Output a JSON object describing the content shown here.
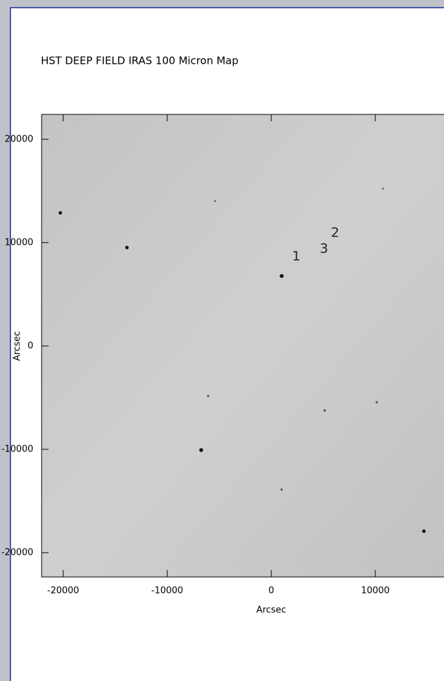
{
  "chart_data": {
    "type": "image",
    "title": "HST DEEP FIELD   IRAS 100 Micron Map",
    "x_label": "Arcsec",
    "y_label": "Arcsec",
    "xlim": [
      -22070,
      16600
    ],
    "ylim": [
      -22350,
      22400
    ],
    "xticks": [
      -20000,
      -10000,
      0,
      10000
    ],
    "yticks": [
      20000,
      10000,
      0,
      -10000,
      -20000
    ],
    "annotations": [
      "1",
      "2",
      "3"
    ]
  }
}
